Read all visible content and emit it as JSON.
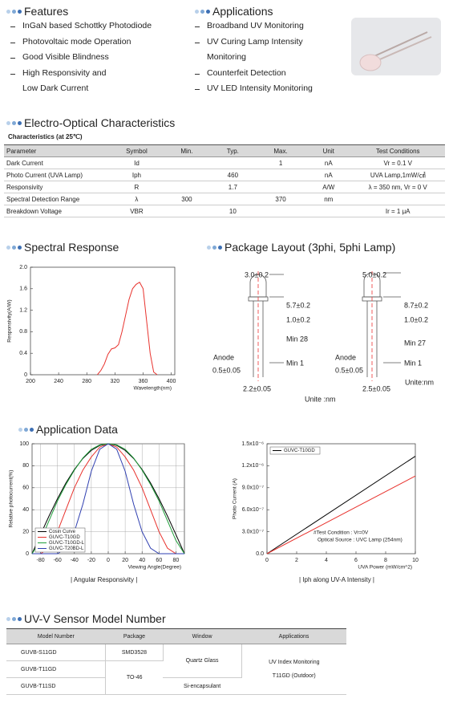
{
  "features": {
    "title": "Features",
    "items": [
      [
        "InGaN based Schottky Photodiode"
      ],
      [
        "Photovoltaic mode Operation"
      ],
      [
        "Good Visible Blindness"
      ],
      [
        "High Responsivity and",
        "Low Dark Current"
      ]
    ]
  },
  "applications": {
    "title": "Applications",
    "items": [
      [
        "Broadband UV Monitoring"
      ],
      [
        "UV Curing Lamp Intensity",
        "Monitoring"
      ],
      [
        "Counterfeit Detection"
      ],
      [
        "UV LED Intensity Monitoring"
      ]
    ]
  },
  "electro_optical": {
    "title": "Electro-Optical Characteristics",
    "subtitle": "Characteristics (at 25℃)",
    "header": [
      "Parameter",
      "Symbol",
      "Min.",
      "Typ.",
      "Max.",
      "Unit",
      "Test Conditions"
    ],
    "rows": [
      [
        "Dark Current",
        "Id",
        null,
        null,
        "1",
        "nA",
        "Vr = 0.1 V"
      ],
      [
        "Photo Current (UVA Lamp)",
        "Iph",
        null,
        "460",
        null,
        "nA",
        "UVA Lamp,1mW/㎠"
      ],
      [
        "Responsivity",
        "R",
        null,
        "1.7",
        null,
        "A/W",
        "λ = 350 nm, Vr = 0 V"
      ],
      [
        "Spectral Detection Range",
        "λ",
        "300",
        null,
        "370",
        "nm",
        null
      ],
      [
        "Breakdown Voltage",
        "VBR",
        null,
        "10",
        null,
        null,
        "Ir = 1 μA"
      ]
    ]
  },
  "spectral_response": {
    "title": "Spectral Response"
  },
  "package_layout": {
    "title": "Package Layout (3phi, 5phi Lamp)",
    "lamp_3phi": [
      "3.0±0.2",
      "5.7±0.2",
      "1.0±0.2",
      "Min 28",
      "Anode",
      "0.5±0.05",
      "Min 1",
      "2.2±0.05",
      "Unite :nm"
    ],
    "lamp_5phi": [
      "5.0±0.2",
      "8.7±0.2",
      "1.0±0.2",
      "Min 27",
      "Anode",
      "0.5±0.05",
      "Min 1",
      "2.5±0.05",
      "Unite:nm"
    ]
  },
  "application_data": {
    "title": "Application Data"
  },
  "model_number": {
    "title": "UV-V Sensor Model Number",
    "header": [
      "Model Number",
      "Package",
      "Window",
      "Applications"
    ],
    "models": [
      "GUVB-S11GD",
      "GUVB-T11GD",
      "GUVB-T11SD"
    ],
    "packages": [
      "SMD3528",
      "TO-46"
    ],
    "windows": [
      "Quartz Glass",
      "Si-encapsulant"
    ],
    "applications": [
      "UV Index Monitoring",
      "T11GD (Outdoor)"
    ]
  },
  "chart_data": [
    {
      "type": "line",
      "xlabel": "Wavelength(nm)",
      "ylabel": "Responsivity(A/W)",
      "x": [
        295,
        300,
        305,
        310,
        315,
        320,
        325,
        330,
        335,
        340,
        345,
        350,
        355,
        360,
        365,
        370,
        375,
        380
      ],
      "series": [
        {
          "color": "#e8322d",
          "values": [
            0,
            0.08,
            0.2,
            0.38,
            0.48,
            0.5,
            0.56,
            0.8,
            1.1,
            1.4,
            1.6,
            1.68,
            1.72,
            1.6,
            1.0,
            0.4,
            0.05,
            0
          ]
        }
      ],
      "xlim": [
        200,
        405
      ],
      "xticks": [
        200,
        240,
        280,
        320,
        360,
        400
      ],
      "ylim": [
        0,
        2.0
      ],
      "yticks": [
        0,
        0.4,
        0.8,
        1.2,
        1.6,
        {
          "value": 2,
          "label": "2.0"
        }
      ],
      "grid": false
    },
    {
      "type": "line",
      "xlabel": "Viewing Angle(Degree)",
      "ylabel": "Relative photocurrent(%)",
      "caption": "| Angular Responsivity |",
      "legend": "lower left",
      "x": [
        -90,
        -80,
        -70,
        -60,
        -50,
        -40,
        -30,
        -20,
        -10,
        0,
        10,
        20,
        30,
        40,
        50,
        60,
        70,
        80,
        90
      ],
      "series": [
        {
          "name": "Cosin Curve",
          "color": "#000000",
          "values": [
            0,
            17.4,
            34.2,
            50,
            64.3,
            76.6,
            86.6,
            94,
            98.5,
            100,
            98.5,
            94,
            86.6,
            76.6,
            64.3,
            50,
            34.2,
            17.4,
            0
          ]
        },
        {
          "name": "GUVC-T10GD",
          "color": "#e8322d",
          "values": [
            0,
            0,
            5,
            20,
            40,
            60,
            76,
            88,
            97,
            100,
            97,
            88,
            76,
            60,
            40,
            20,
            5,
            0,
            0
          ]
        },
        {
          "name": "GUVC-T10GD-L",
          "color": "#1f9e3a",
          "values": [
            0,
            12,
            30,
            48,
            63,
            76,
            87,
            95,
            99,
            100,
            99,
            95,
            87,
            76,
            63,
            48,
            30,
            12,
            0
          ]
        },
        {
          "name": "GUVC-T20BD-L",
          "color": "#2f3fb0",
          "values": [
            0,
            0,
            0,
            0,
            5,
            20,
            45,
            75,
            95,
            100,
            95,
            75,
            45,
            20,
            5,
            0,
            0,
            0,
            0
          ]
        }
      ],
      "xlim": [
        -90,
        90
      ],
      "xticks": [
        -80,
        -60,
        -40,
        -20,
        0,
        20,
        40,
        60,
        80
      ],
      "ylim": [
        0,
        100
      ],
      "yticks": [
        0,
        20,
        40,
        60,
        80,
        100
      ],
      "grid": true
    },
    {
      "type": "line",
      "xlabel": "UVA Power (mW/cm^2)",
      "ylabel": "Photo Current (A)",
      "caption": "| Iph along UV-A Intensity |",
      "legend": "upper left",
      "annotations": [
        "#Test Condition : Vr=0V",
        "Optical Source : UVC Lamp (254nm)"
      ],
      "x": [
        0,
        10
      ],
      "series": [
        {
          "name": "GUVC-T10GD",
          "color": "#000000",
          "values": [
            0,
            1.33e-06
          ]
        },
        {
          "color": "#e8322d",
          "values": [
            0,
            1.06e-06
          ]
        }
      ],
      "xlim": [
        0,
        10
      ],
      "xticks": [
        0,
        2,
        4,
        6,
        8,
        10
      ],
      "ylim": [
        0,
        1.5e-06
      ],
      "yticks": [
        {
          "value": 0,
          "label": "0.0"
        },
        {
          "value": 3e-07,
          "label": "3.0x10⁻⁷"
        },
        {
          "value": 6e-07,
          "label": "6.0x10⁻⁷"
        },
        {
          "value": 9e-07,
          "label": "9.0x10⁻⁷"
        },
        {
          "value": 1.2e-06,
          "label": "1.2x10⁻⁶"
        },
        {
          "value": 1.5e-06,
          "label": "1.5x10⁻⁶"
        }
      ],
      "grid": false
    }
  ]
}
